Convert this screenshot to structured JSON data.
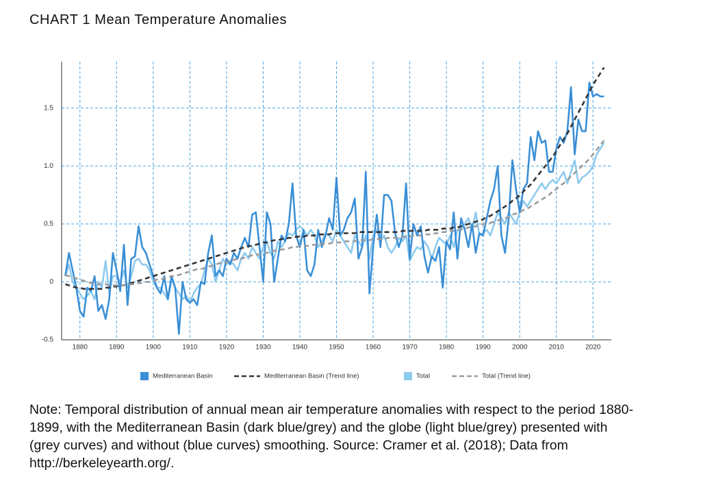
{
  "chart_data": {
    "type": "line",
    "title": "CHART 1 Mean Temperature Anomalies",
    "note": "Note: Temporal distribution of annual mean air temperature anomalies with respect to the period 1880-1899, with the Mediterranean Basin (dark blue/grey) and the globe (light blue/grey) presented with (grey curves) and without (blue curves) smoothing. Source: Cramer et al. (2018); Data from http://berkeleyearth.org/.",
    "x": [
      1876,
      1877,
      1878,
      1879,
      1880,
      1881,
      1882,
      1883,
      1884,
      1885,
      1886,
      1887,
      1888,
      1889,
      1890,
      1891,
      1892,
      1893,
      1894,
      1895,
      1896,
      1897,
      1898,
      1899,
      1900,
      1901,
      1902,
      1903,
      1904,
      1905,
      1906,
      1907,
      1908,
      1909,
      1910,
      1911,
      1912,
      1913,
      1914,
      1915,
      1916,
      1917,
      1918,
      1919,
      1920,
      1921,
      1922,
      1923,
      1924,
      1925,
      1926,
      1927,
      1928,
      1929,
      1930,
      1931,
      1932,
      1933,
      1934,
      1935,
      1936,
      1937,
      1938,
      1939,
      1940,
      1941,
      1942,
      1943,
      1944,
      1945,
      1946,
      1947,
      1948,
      1949,
      1950,
      1951,
      1952,
      1953,
      1954,
      1955,
      1956,
      1957,
      1958,
      1959,
      1960,
      1961,
      1962,
      1963,
      1964,
      1965,
      1966,
      1967,
      1968,
      1969,
      1970,
      1971,
      1972,
      1973,
      1974,
      1975,
      1976,
      1977,
      1978,
      1979,
      1980,
      1981,
      1982,
      1983,
      1984,
      1985,
      1986,
      1987,
      1988,
      1989,
      1990,
      1991,
      1992,
      1993,
      1994,
      1995,
      1996,
      1997,
      1998,
      1999,
      2000,
      2001,
      2002,
      2003,
      2004,
      2005,
      2006,
      2007,
      2008,
      2009,
      2010,
      2011,
      2012,
      2013,
      2014,
      2015,
      2016,
      2017,
      2018,
      2019,
      2020,
      2021,
      2022,
      2023
    ],
    "series": [
      {
        "name": "Mediterranean Basin",
        "color": "#3a8fd6",
        "style": "solid",
        "width": 2.6,
        "values": [
          0.05,
          0.25,
          0.1,
          -0.05,
          -0.25,
          -0.3,
          -0.05,
          -0.08,
          0.05,
          -0.25,
          -0.2,
          -0.32,
          -0.15,
          0.25,
          0.1,
          -0.08,
          0.32,
          -0.2,
          0.2,
          0.22,
          0.48,
          0.3,
          0.25,
          0.15,
          0.05,
          -0.05,
          -0.1,
          0.05,
          -0.15,
          0.05,
          -0.05,
          -0.45,
          0.0,
          -0.15,
          -0.18,
          -0.15,
          -0.2,
          0.0,
          -0.02,
          0.25,
          0.4,
          0.05,
          0.1,
          0.05,
          0.2,
          0.15,
          0.25,
          0.2,
          0.3,
          0.38,
          0.3,
          0.58,
          0.6,
          0.3,
          0.0,
          0.6,
          0.5,
          0.0,
          0.2,
          0.4,
          0.35,
          0.5,
          0.85,
          0.4,
          0.3,
          0.45,
          0.1,
          0.05,
          0.15,
          0.45,
          0.3,
          0.4,
          0.55,
          0.45,
          0.9,
          0.4,
          0.45,
          0.55,
          0.6,
          0.72,
          0.2,
          0.3,
          0.95,
          -0.1,
          0.3,
          0.58,
          0.3,
          0.75,
          0.75,
          0.7,
          0.42,
          0.3,
          0.4,
          0.85,
          0.2,
          0.5,
          0.4,
          0.48,
          0.22,
          0.08,
          0.22,
          0.18,
          0.3,
          -0.05,
          0.35,
          0.28,
          0.6,
          0.2,
          0.55,
          0.45,
          0.3,
          0.5,
          0.25,
          0.42,
          0.4,
          0.55,
          0.7,
          0.8,
          1.0,
          0.4,
          0.25,
          0.55,
          1.05,
          0.8,
          0.6,
          0.8,
          0.85,
          1.25,
          1.05,
          1.3,
          1.2,
          1.22,
          0.95,
          0.95,
          1.15,
          1.25,
          1.2,
          1.3,
          1.68,
          1.1,
          1.4,
          1.3,
          1.3,
          1.72,
          1.6,
          1.62,
          1.6,
          1.6
        ]
      },
      {
        "name": "Mediterranean Basin (Trend line)",
        "color": "#333333",
        "style": "dashed",
        "width": 2.6,
        "values": [
          -0.02,
          -0.03,
          -0.04,
          -0.05,
          -0.05,
          -0.06,
          -0.06,
          -0.06,
          -0.06,
          -0.06,
          -0.06,
          -0.05,
          -0.05,
          -0.04,
          -0.04,
          -0.03,
          -0.03,
          -0.02,
          -0.01,
          0,
          0.01,
          0.02,
          0.03,
          0.04,
          0.05,
          0.06,
          0.07,
          0.08,
          0.09,
          0.1,
          0.11,
          0.12,
          0.13,
          0.14,
          0.15,
          0.16,
          0.17,
          0.18,
          0.19,
          0.2,
          0.21,
          0.22,
          0.23,
          0.24,
          0.25,
          0.26,
          0.27,
          0.28,
          0.29,
          0.3,
          0.31,
          0.31,
          0.32,
          0.33,
          0.34,
          0.34,
          0.35,
          0.36,
          0.36,
          0.37,
          0.37,
          0.38,
          0.38,
          0.39,
          0.39,
          0.39,
          0.4,
          0.4,
          0.4,
          0.41,
          0.41,
          0.41,
          0.41,
          0.42,
          0.42,
          0.42,
          0.42,
          0.42,
          0.42,
          0.42,
          0.43,
          0.43,
          0.43,
          0.43,
          0.43,
          0.43,
          0.43,
          0.43,
          0.43,
          0.43,
          0.43,
          0.43,
          0.44,
          0.44,
          0.44,
          0.44,
          0.44,
          0.44,
          0.44,
          0.45,
          0.45,
          0.45,
          0.45,
          0.46,
          0.46,
          0.46,
          0.47,
          0.47,
          0.48,
          0.49,
          0.5,
          0.51,
          0.52,
          0.53,
          0.54,
          0.56,
          0.57,
          0.59,
          0.61,
          0.63,
          0.65,
          0.67,
          0.7,
          0.72,
          0.75,
          0.78,
          0.81,
          0.84,
          0.88,
          0.92,
          0.96,
          1.0,
          1.04,
          1.08,
          1.13,
          1.18,
          1.23,
          1.28,
          1.34,
          1.4,
          1.46,
          1.52,
          1.58,
          1.64,
          1.7,
          1.75,
          1.8,
          1.85
        ]
      },
      {
        "name": "Total",
        "color": "#8ecbef",
        "style": "solid",
        "width": 2.6,
        "values": [
          0.05,
          0.15,
          0.0,
          -0.05,
          -0.1,
          -0.15,
          -0.12,
          -0.08,
          -0.15,
          0.0,
          -0.05,
          0.18,
          -0.1,
          0.05,
          0.05,
          0.0,
          0.1,
          -0.05,
          0.05,
          0.18,
          0.2,
          0.15,
          0.15,
          0.1,
          0.0,
          -0.05,
          -0.05,
          -0.1,
          -0.15,
          0.02,
          -0.05,
          -0.1,
          -0.15,
          -0.12,
          -0.18,
          -0.1,
          -0.05,
          -0.02,
          0.1,
          0.2,
          0.15,
          0.0,
          0.1,
          0.2,
          0.15,
          0.18,
          0.15,
          0.1,
          0.2,
          0.25,
          0.2,
          0.3,
          0.25,
          0.2,
          0.3,
          0.35,
          0.25,
          0.2,
          0.35,
          0.3,
          0.35,
          0.42,
          0.4,
          0.45,
          0.48,
          0.45,
          0.4,
          0.45,
          0.4,
          0.3,
          0.35,
          0.42,
          0.4,
          0.35,
          0.45,
          0.4,
          0.35,
          0.3,
          0.25,
          0.4,
          0.35,
          0.3,
          0.4,
          0.2,
          0.4,
          0.45,
          0.35,
          0.4,
          0.3,
          0.25,
          0.3,
          0.38,
          0.35,
          0.4,
          0.18,
          0.25,
          0.3,
          0.28,
          0.35,
          0.3,
          0.2,
          0.3,
          0.38,
          0.35,
          0.32,
          0.4,
          0.3,
          0.45,
          0.45,
          0.5,
          0.55,
          0.45,
          0.6,
          0.4,
          0.42,
          0.45,
          0.4,
          0.5,
          0.6,
          0.55,
          0.5,
          0.6,
          0.55,
          0.5,
          0.6,
          0.7,
          0.65,
          0.7,
          0.75,
          0.8,
          0.85,
          0.8,
          0.85,
          0.88,
          0.85,
          0.9,
          0.95,
          0.85,
          0.95,
          1.05,
          0.85,
          0.9,
          0.92,
          0.95,
          1.0,
          1.1,
          1.15,
          1.2
        ]
      },
      {
        "name": "Total (Trend line)",
        "color": "#9a9a9a",
        "style": "dashed",
        "width": 2.6,
        "values": [
          0.06,
          0.05,
          0.04,
          0.03,
          0.02,
          0.01,
          0.0,
          -0.01,
          -0.01,
          -0.02,
          -0.02,
          -0.02,
          -0.03,
          -0.03,
          -0.03,
          -0.03,
          -0.03,
          -0.02,
          -0.02,
          -0.02,
          -0.01,
          -0.01,
          0.0,
          0.0,
          0.01,
          0.02,
          0.02,
          0.03,
          0.04,
          0.05,
          0.05,
          0.06,
          0.07,
          0.08,
          0.09,
          0.1,
          0.11,
          0.11,
          0.12,
          0.13,
          0.14,
          0.15,
          0.16,
          0.17,
          0.17,
          0.18,
          0.19,
          0.2,
          0.2,
          0.21,
          0.22,
          0.23,
          0.23,
          0.24,
          0.25,
          0.25,
          0.26,
          0.27,
          0.27,
          0.28,
          0.28,
          0.29,
          0.3,
          0.3,
          0.31,
          0.31,
          0.31,
          0.32,
          0.32,
          0.32,
          0.33,
          0.33,
          0.33,
          0.34,
          0.34,
          0.34,
          0.35,
          0.35,
          0.35,
          0.35,
          0.36,
          0.36,
          0.36,
          0.36,
          0.37,
          0.37,
          0.37,
          0.37,
          0.38,
          0.38,
          0.38,
          0.38,
          0.39,
          0.39,
          0.39,
          0.4,
          0.4,
          0.4,
          0.41,
          0.41,
          0.41,
          0.42,
          0.42,
          0.43,
          0.43,
          0.44,
          0.44,
          0.45,
          0.45,
          0.46,
          0.47,
          0.47,
          0.48,
          0.49,
          0.5,
          0.5,
          0.51,
          0.52,
          0.53,
          0.54,
          0.55,
          0.56,
          0.58,
          0.59,
          0.6,
          0.62,
          0.63,
          0.65,
          0.67,
          0.69,
          0.71,
          0.73,
          0.75,
          0.78,
          0.8,
          0.83,
          0.85,
          0.88,
          0.91,
          0.94,
          0.97,
          1.0,
          1.03,
          1.06,
          1.1,
          1.14,
          1.18,
          1.22
        ]
      }
    ],
    "xlim": [
      1875,
      2025
    ],
    "ylim": [
      -0.5,
      1.9
    ],
    "xticks": [
      1880,
      1890,
      1900,
      1910,
      1920,
      1930,
      1940,
      1950,
      1960,
      1970,
      1980,
      1990,
      2000,
      2010,
      2020
    ],
    "yticks": [
      -0.5,
      0,
      0.5,
      {
        "value": 1,
        "label": "1.0"
      },
      1.5
    ],
    "grid": true,
    "grid_color": "#4aa3e0"
  }
}
